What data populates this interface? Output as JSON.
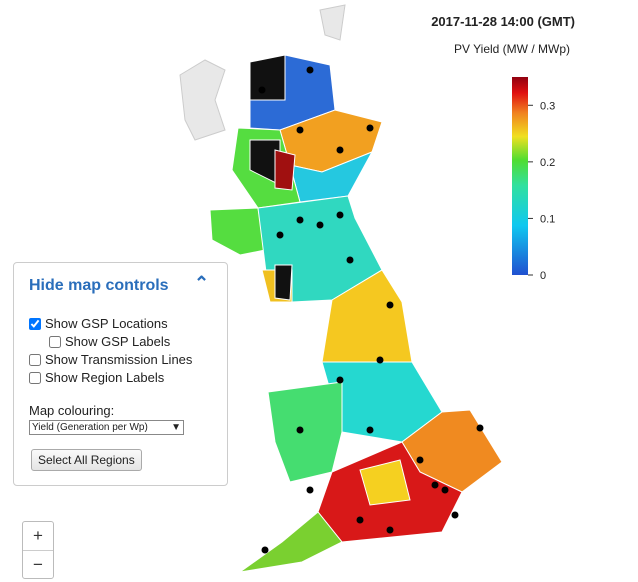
{
  "header": {
    "timestamp": "2017-11-28 14:00 (GMT)"
  },
  "colorbar": {
    "title": "PV Yield (MW / MWp)",
    "range": [
      0,
      0.35
    ],
    "ticks": [
      0,
      0.1,
      0.2,
      0.3
    ]
  },
  "controls": {
    "toggle": "Hide map controls",
    "options": [
      {
        "label": "Show GSP Locations",
        "checked": true,
        "indent": false
      },
      {
        "label": "Show GSP Labels",
        "checked": false,
        "indent": true
      },
      {
        "label": "Show Transmission Lines",
        "checked": false,
        "indent": false
      },
      {
        "label": "Show Region Labels",
        "checked": false,
        "indent": false
      }
    ],
    "colouring_label": "Map colouring:",
    "colouring_value": "Yield (Generation per Wp)",
    "button": "Select All Regions"
  },
  "zoom": {
    "in": "+",
    "out": "−"
  }
}
